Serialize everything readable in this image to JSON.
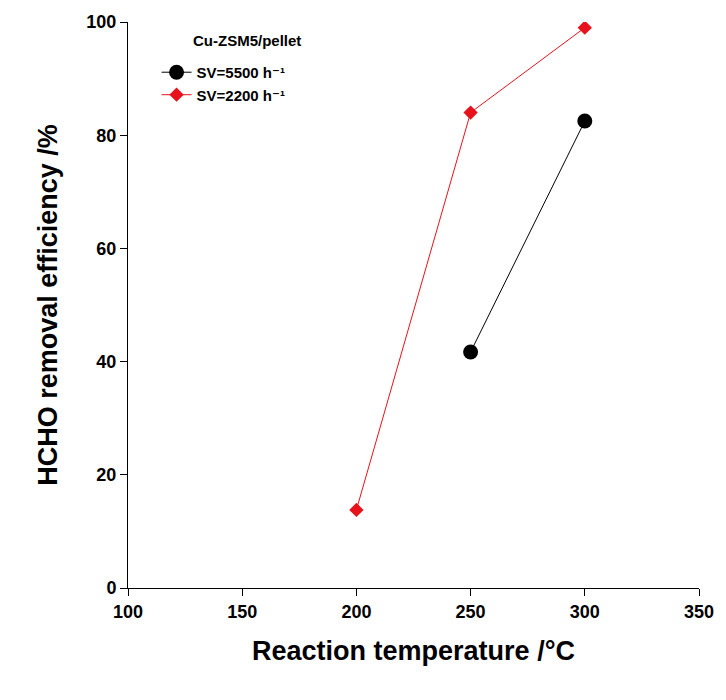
{
  "chart_data": {
    "type": "line",
    "annotations": [
      "Cu-ZSM5/pellet"
    ],
    "xlabel": "Reaction temperature /°C",
    "ylabel": "HCHO removal efficiency /%",
    "series": [
      {
        "name": "SV=5500 h⁻¹",
        "color": "#000000",
        "marker": "circle",
        "line_style": "solid",
        "x": [
          250,
          300
        ],
        "values": [
          41.7,
          82.5
        ]
      },
      {
        "name": "SV=2200 h⁻¹",
        "color": "#e8121c",
        "marker": "diamond",
        "line_style": "solid",
        "x": [
          200,
          250,
          300
        ],
        "values": [
          13.8,
          84.0,
          99.0
        ]
      }
    ],
    "xlim": [
      100,
      350
    ],
    "xticks": [
      100,
      150,
      200,
      250,
      300,
      350
    ],
    "ylim": [
      0,
      100
    ],
    "yticks": [
      0,
      20,
      40,
      60,
      80,
      100
    ],
    "grid": false,
    "legend": "upper left"
  }
}
